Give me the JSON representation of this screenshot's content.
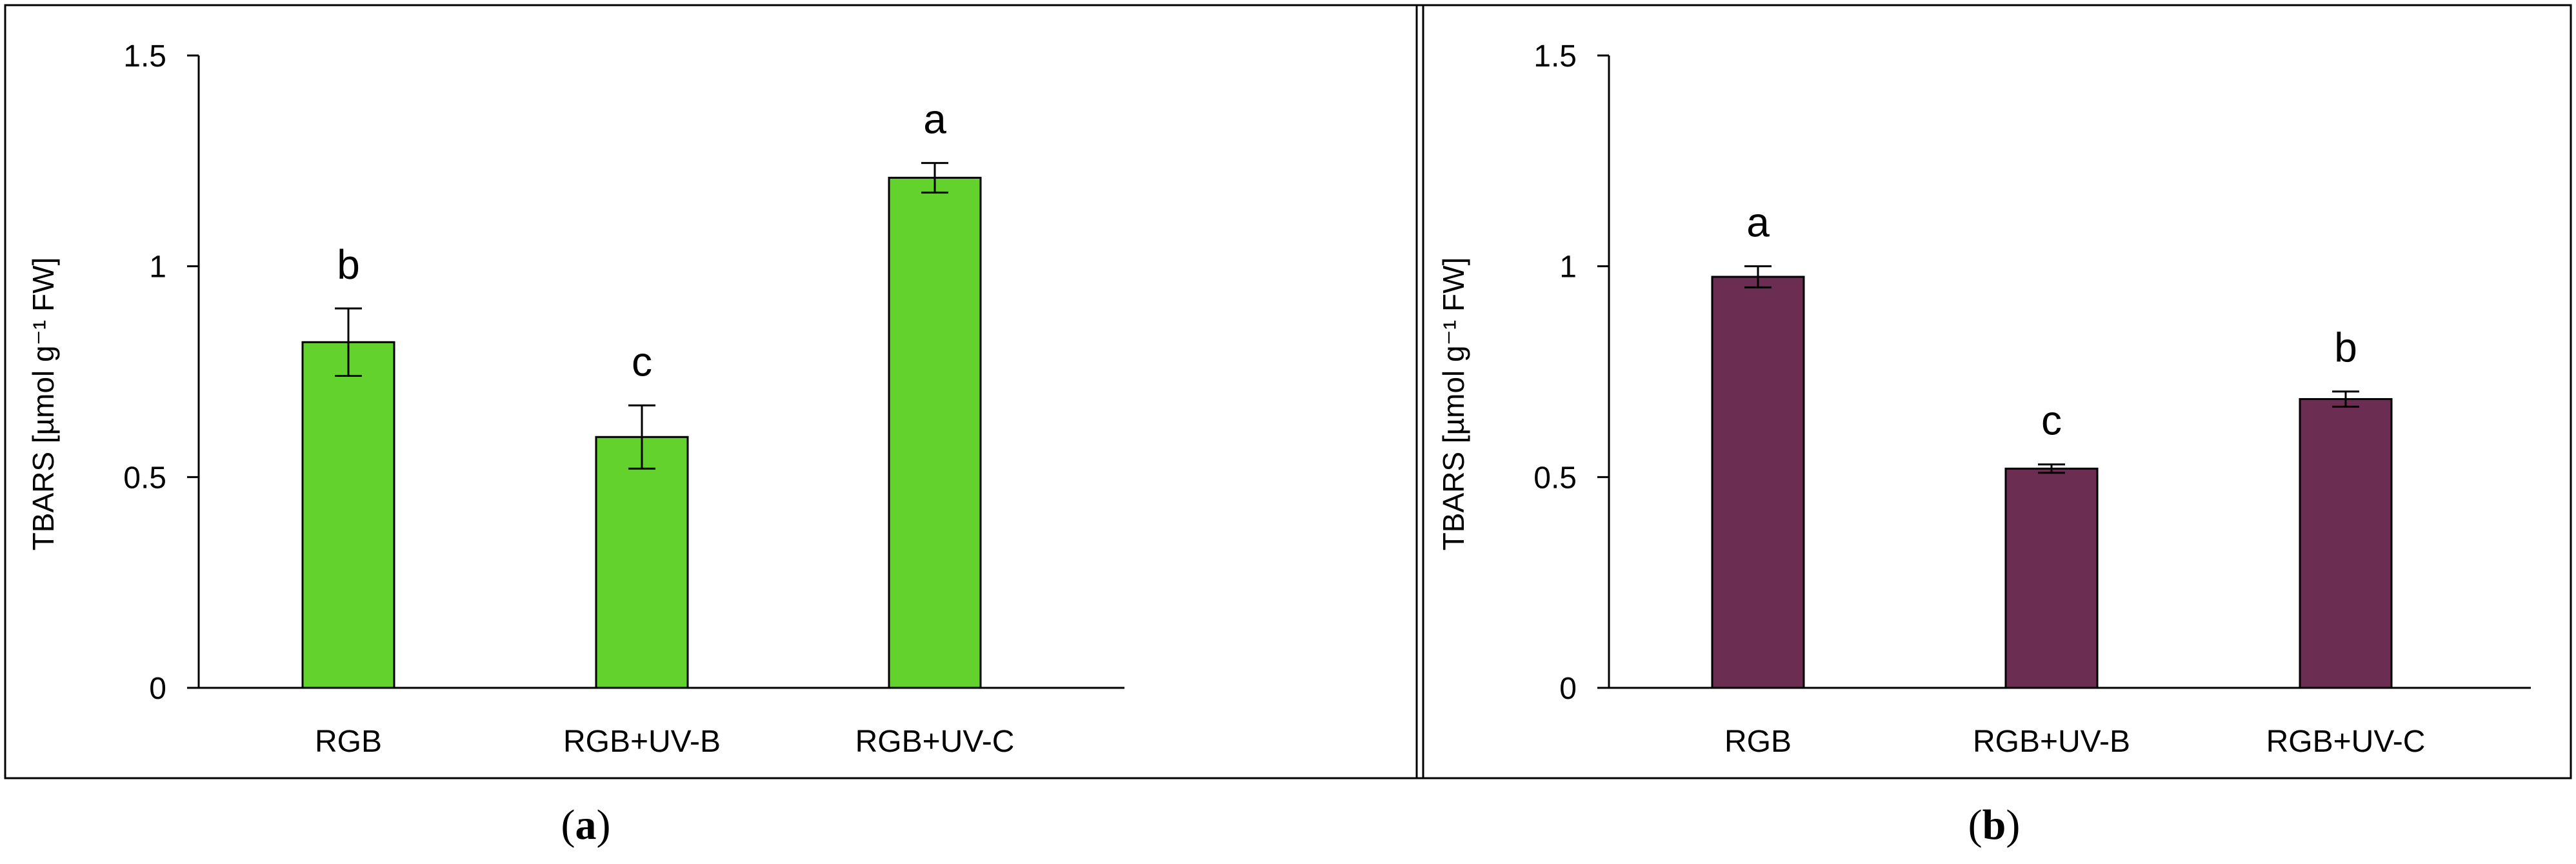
{
  "figure": {
    "panels": [
      {
        "label": "a"
      },
      {
        "label": "b"
      }
    ]
  },
  "chart_data": [
    {
      "type": "bar",
      "panel": "a",
      "ylabel": "TBARS [µmol g⁻¹ FW]",
      "ylim": [
        0,
        1.5
      ],
      "yticks": [
        0,
        0.5,
        1,
        1.5
      ],
      "ytick_labels": [
        "0",
        "0.5",
        "1",
        "1.5"
      ],
      "categories": [
        "RGB",
        "RGB+UV-B",
        "RGB+UV-C"
      ],
      "values": [
        0.82,
        0.595,
        1.21
      ],
      "errors": [
        0.08,
        0.075,
        0.035
      ],
      "significance_letters": [
        "b",
        "c",
        "a"
      ],
      "bar_color": "#63d22d",
      "grid": false
    },
    {
      "type": "bar",
      "panel": "b",
      "ylabel": "TBARS [µmol g⁻¹ FW]",
      "ylim": [
        0,
        1.5
      ],
      "yticks": [
        0,
        0.5,
        1,
        1.5
      ],
      "ytick_labels": [
        "0",
        "0.5",
        "1",
        "1.5"
      ],
      "categories": [
        "RGB",
        "RGB+UV-B",
        "RGB+UV-C"
      ],
      "values": [
        0.975,
        0.52,
        0.685
      ],
      "errors": [
        0.025,
        0.01,
        0.018
      ],
      "significance_letters": [
        "a",
        "c",
        "b"
      ],
      "bar_color": "#6b2d51",
      "grid": false
    }
  ]
}
